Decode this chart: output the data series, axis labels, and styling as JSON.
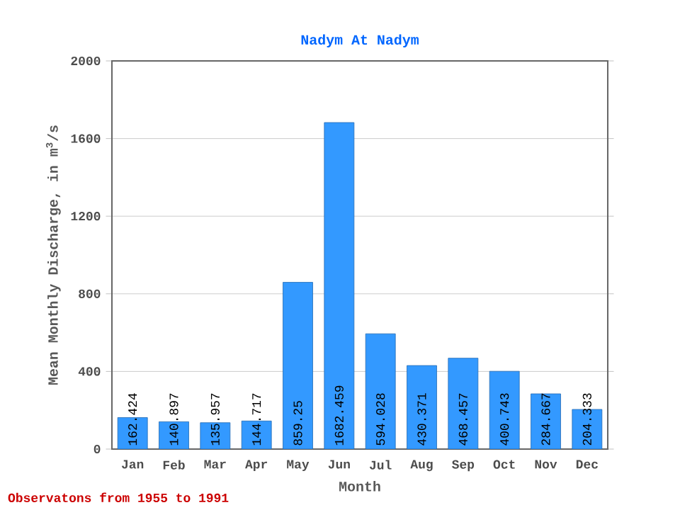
{
  "chart_data": {
    "type": "bar",
    "title": "Nadym At Nadym",
    "xlabel": "Month",
    "ylabel": "Mean Monthly Discharge, in  m$^{3}$/s",
    "categories": [
      "Jan",
      "Feb",
      "Mar",
      "Apr",
      "May",
      "Jun",
      "Jul",
      "Aug",
      "Sep",
      "Oct",
      "Nov",
      "Dec"
    ],
    "values": [
      162.424,
      140.897,
      135.957,
      144.717,
      859.25,
      1682.459,
      594.028,
      430.371,
      468.457,
      400.743,
      284.667,
      204.333
    ],
    "color": "#3399ff",
    "ylim": [
      0,
      2000
    ],
    "yticks": [
      0,
      400,
      800,
      1200,
      1600,
      2000
    ],
    "grid": "y",
    "data_labels": true,
    "annotations": [
      "Observatons from 1955 to 1991"
    ]
  }
}
